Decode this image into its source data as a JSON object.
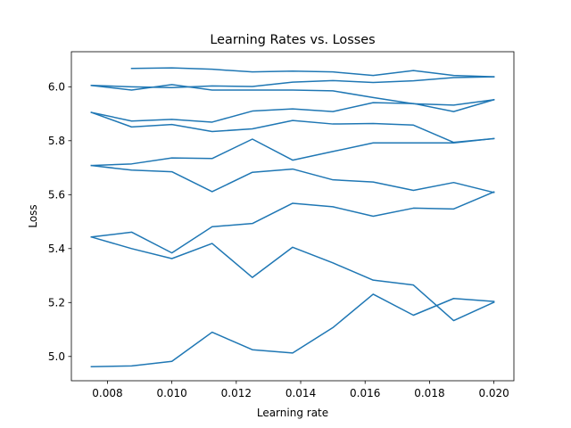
{
  "chart_data": {
    "type": "line",
    "title": "Learning Rates vs. Losses",
    "xlabel": "Learning rate",
    "ylabel": "Loss",
    "xlim": [
      0.00688,
      0.02062
    ],
    "ylim": [
      4.91,
      6.13
    ],
    "x_ticks": [
      0.008,
      0.01,
      0.012,
      0.014,
      0.016,
      0.018,
      0.02
    ],
    "x_tick_labels": [
      "0.008",
      "0.010",
      "0.012",
      "0.014",
      "0.016",
      "0.018",
      "0.020"
    ],
    "y_ticks": [
      5.0,
      5.2,
      5.4,
      5.6,
      5.8,
      6.0
    ],
    "y_tick_labels": [
      "5.0",
      "5.2",
      "5.4",
      "5.6",
      "5.8",
      "6.0"
    ],
    "grid": false,
    "line_color": "#1f77b4",
    "series": [
      {
        "x": [
          0.00875,
          0.01,
          0.01125,
          0.0125,
          0.01375,
          0.015,
          0.01625,
          0.0175,
          0.01875,
          0.02
        ],
        "y": [
          6.068,
          6.07,
          6.065,
          6.055,
          6.058,
          6.055,
          6.042,
          6.06,
          6.042,
          6.037
        ]
      },
      {
        "x": [
          0.0075,
          0.00875,
          0.01,
          0.01125,
          0.0125,
          0.01375,
          0.015,
          0.01625,
          0.0175,
          0.01875,
          0.02
        ],
        "y": [
          6.005,
          5.988,
          6.008,
          5.988,
          5.988,
          5.988,
          5.985,
          5.96,
          5.937,
          5.932,
          5.952
        ]
      },
      {
        "x": [
          0.0075,
          0.00875,
          0.01,
          0.01125,
          0.0125,
          0.01375,
          0.015,
          0.01625,
          0.0175,
          0.01875,
          0.02
        ],
        "y": [
          6.005,
          6.0,
          5.997,
          6.003,
          6.001,
          6.017,
          6.023,
          6.016,
          6.022,
          6.034,
          6.037
        ]
      },
      {
        "x": [
          0.0075,
          0.00875,
          0.01,
          0.01125,
          0.0125,
          0.01375,
          0.015,
          0.01625,
          0.0175,
          0.01875,
          0.02
        ],
        "y": [
          5.905,
          5.873,
          5.879,
          5.869,
          5.91,
          5.918,
          5.908,
          5.941,
          5.938,
          5.908,
          5.952
        ]
      },
      {
        "x": [
          0.0075,
          0.00875,
          0.01,
          0.01125,
          0.0125,
          0.01375,
          0.015,
          0.01625,
          0.0175,
          0.01875,
          0.02
        ],
        "y": [
          5.905,
          5.851,
          5.86,
          5.834,
          5.844,
          5.875,
          5.862,
          5.864,
          5.858,
          5.794,
          5.808
        ]
      },
      {
        "x": [
          0.0075,
          0.00875,
          0.01,
          0.01125,
          0.0125,
          0.01375,
          0.015,
          0.01625,
          0.0175,
          0.01875,
          0.02
        ],
        "y": [
          5.708,
          5.714,
          5.736,
          5.734,
          5.806,
          5.728,
          5.76,
          5.792,
          5.792,
          5.792,
          5.808
        ]
      },
      {
        "x": [
          0.0075,
          0.00875,
          0.01,
          0.01125,
          0.0125,
          0.01375,
          0.015,
          0.01625,
          0.0175,
          0.01875,
          0.02
        ],
        "y": [
          5.708,
          5.691,
          5.685,
          5.611,
          5.683,
          5.695,
          5.655,
          5.647,
          5.616,
          5.645,
          5.608
        ]
      },
      {
        "x": [
          0.0075,
          0.00875,
          0.01,
          0.01125,
          0.0125,
          0.01375,
          0.015,
          0.01625,
          0.0175,
          0.01875,
          0.02
        ],
        "y": [
          5.443,
          5.461,
          5.384,
          5.481,
          5.493,
          5.568,
          5.555,
          5.52,
          5.55,
          5.547,
          5.61
        ]
      },
      {
        "x": [
          0.0075,
          0.00875,
          0.01,
          0.01125,
          0.0125,
          0.01375,
          0.015,
          0.01625,
          0.0175,
          0.01875,
          0.02
        ],
        "y": [
          5.443,
          5.4,
          5.363,
          5.419,
          5.293,
          5.405,
          5.347,
          5.283,
          5.265,
          5.133,
          5.201
        ]
      },
      {
        "x": [
          0.0075,
          0.00875,
          0.01,
          0.01125,
          0.0125,
          0.01375,
          0.015,
          0.01625,
          0.0175,
          0.01875,
          0.02
        ],
        "y": [
          4.962,
          4.965,
          4.982,
          5.09,
          5.025,
          5.013,
          5.107,
          5.231,
          5.153,
          5.215,
          5.204
        ]
      }
    ]
  }
}
